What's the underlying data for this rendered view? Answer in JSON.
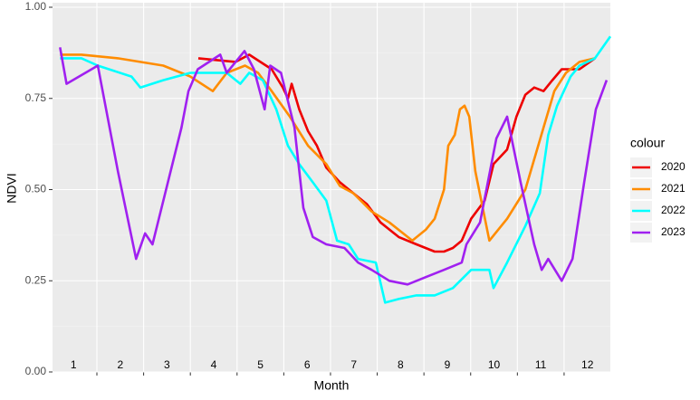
{
  "chart_data": {
    "type": "line",
    "x_label": "Month",
    "y_label": "NDVI",
    "legend_title": "colour",
    "xlim": [
      0.55,
      12.49
    ],
    "ylim": [
      0,
      1
    ],
    "yticks": [
      {
        "value": 0,
        "label": "0.00"
      },
      {
        "value": 0.25,
        "label": "0.25"
      },
      {
        "value": 0.5,
        "label": "0.50"
      },
      {
        "value": 0.75,
        "label": "0.75"
      },
      {
        "value": 1,
        "label": "1.00"
      }
    ],
    "yminor": [
      0.125,
      0.375,
      0.625,
      0.875
    ],
    "xticks": [
      1,
      2,
      3,
      4,
      5,
      6,
      7,
      8,
      9,
      10,
      11,
      12
    ],
    "xgrid": [
      1.5,
      2.5,
      3.5,
      4.5,
      5.5,
      6.5,
      7.5,
      8.5,
      9.5,
      10.5,
      11.5
    ],
    "grid": true,
    "legend": "right",
    "series": [
      {
        "name": "2020",
        "color": "#ee0000",
        "x": [
          3.67,
          4.47,
          4.76,
          5.24,
          5.48,
          5.59,
          5.67,
          5.83,
          6.02,
          6.21,
          6.41,
          6.7,
          6.99,
          7.28,
          7.57,
          7.96,
          8.34,
          8.73,
          8.93,
          9.12,
          9.31,
          9.51,
          9.8,
          9.99,
          10.28,
          10.48,
          10.67,
          10.86,
          11.06,
          11.25,
          11.45,
          11.83,
          12.16
        ],
        "values": [
          0.86,
          0.85,
          0.87,
          0.83,
          0.78,
          0.75,
          0.79,
          0.72,
          0.66,
          0.62,
          0.56,
          0.52,
          0.49,
          0.46,
          0.41,
          0.37,
          0.35,
          0.33,
          0.33,
          0.34,
          0.36,
          0.42,
          0.47,
          0.57,
          0.61,
          0.7,
          0.76,
          0.78,
          0.77,
          0.8,
          0.83,
          0.83,
          0.86
        ]
      },
      {
        "name": "2021",
        "color": "#ff8c00",
        "x": [
          0.71,
          1.17,
          1.95,
          2.92,
          3.5,
          3.98,
          4.28,
          4.67,
          4.95,
          5.24,
          5.63,
          6.02,
          6.41,
          6.7,
          6.99,
          7.38,
          7.76,
          8.25,
          8.54,
          8.73,
          8.93,
          9.02,
          9.16,
          9.27,
          9.37,
          9.47,
          9.6,
          9.9,
          10.28,
          10.67,
          11.06,
          11.29,
          11.54,
          11.83,
          12.16
        ],
        "values": [
          0.87,
          0.87,
          0.86,
          0.84,
          0.81,
          0.77,
          0.82,
          0.84,
          0.82,
          0.77,
          0.7,
          0.62,
          0.57,
          0.51,
          0.49,
          0.44,
          0.41,
          0.36,
          0.39,
          0.42,
          0.5,
          0.62,
          0.65,
          0.72,
          0.73,
          0.7,
          0.55,
          0.36,
          0.42,
          0.5,
          0.67,
          0.77,
          0.82,
          0.85,
          0.86
        ]
      },
      {
        "name": "2022",
        "color": "#00ffff",
        "x": [
          0.71,
          1.17,
          1.52,
          2.24,
          2.43,
          2.92,
          3.5,
          4.28,
          4.57,
          4.76,
          5.05,
          5.34,
          5.59,
          5.83,
          6.12,
          6.41,
          6.64,
          6.89,
          7.09,
          7.47,
          7.67,
          7.96,
          8.34,
          8.73,
          9.12,
          9.51,
          9.9,
          9.99,
          10.28,
          10.67,
          10.98,
          11.16,
          11.35,
          11.64,
          11.83,
          12.16,
          12.49
        ],
        "values": [
          0.86,
          0.86,
          0.84,
          0.81,
          0.78,
          0.8,
          0.82,
          0.82,
          0.79,
          0.82,
          0.8,
          0.72,
          0.62,
          0.57,
          0.52,
          0.47,
          0.36,
          0.35,
          0.31,
          0.3,
          0.19,
          0.2,
          0.21,
          0.21,
          0.23,
          0.28,
          0.28,
          0.23,
          0.3,
          0.4,
          0.49,
          0.65,
          0.73,
          0.81,
          0.84,
          0.86,
          0.92
        ]
      },
      {
        "name": "2023",
        "color": "#a020f0",
        "x": [
          0.71,
          0.85,
          1.52,
          1.95,
          2.34,
          2.53,
          2.69,
          3.02,
          3.31,
          3.46,
          3.66,
          4.14,
          4.28,
          4.66,
          4.86,
          5.09,
          5.21,
          5.44,
          5.73,
          5.92,
          6.12,
          6.41,
          6.8,
          7.09,
          7.38,
          7.76,
          8.15,
          8.54,
          8.93,
          9.31,
          9.41,
          9.7,
          10.05,
          10.28,
          10.57,
          10.86,
          11.02,
          11.16,
          11.45,
          11.68,
          11.93,
          12.18,
          12.41
        ],
        "values": [
          0.89,
          0.79,
          0.84,
          0.55,
          0.31,
          0.38,
          0.35,
          0.52,
          0.67,
          0.77,
          0.83,
          0.87,
          0.82,
          0.88,
          0.83,
          0.72,
          0.84,
          0.82,
          0.67,
          0.45,
          0.37,
          0.35,
          0.34,
          0.3,
          0.28,
          0.25,
          0.24,
          0.26,
          0.28,
          0.3,
          0.35,
          0.41,
          0.64,
          0.7,
          0.52,
          0.35,
          0.28,
          0.31,
          0.25,
          0.31,
          0.52,
          0.72,
          0.8
        ]
      }
    ]
  }
}
